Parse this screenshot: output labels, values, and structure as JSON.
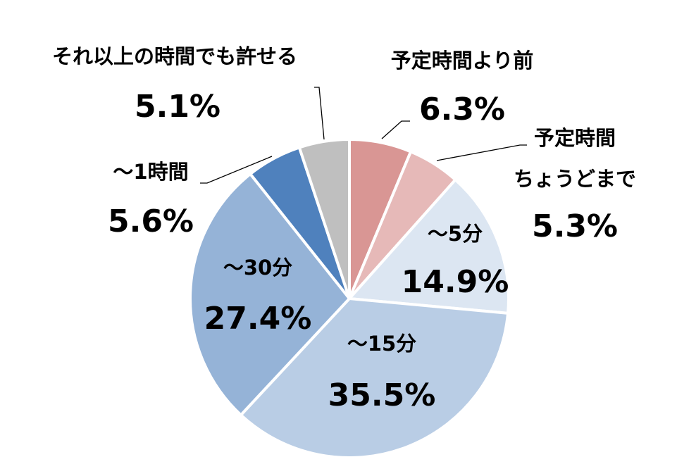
{
  "chart_data": {
    "type": "pie",
    "start": "12 o'clock",
    "direction": "clockwise",
    "slices": [
      {
        "label": "予定時間より前",
        "value": 6.3,
        "display": "6.3%",
        "color": "#d99694",
        "label_placement": "outside"
      },
      {
        "label": "予定時間ちょうどまで",
        "label_lines": [
          "予定時間",
          "ちょうどまで"
        ],
        "value": 5.3,
        "display": "5.3%",
        "color": "#e6b9b8",
        "label_placement": "outside"
      },
      {
        "label": "～5分",
        "value": 14.9,
        "display": "14.9%",
        "color": "#dce6f2",
        "label_placement": "inside"
      },
      {
        "label": "～15分",
        "value": 35.5,
        "display": "35.5%",
        "color": "#b9cde5",
        "label_placement": "inside"
      },
      {
        "label": "～30分",
        "value": 27.4,
        "display": "27.4%",
        "color": "#95b3d7",
        "label_placement": "inside"
      },
      {
        "label": "～1時間",
        "value": 5.6,
        "display": "5.6%",
        "color": "#4f81bd",
        "label_placement": "outside"
      },
      {
        "label": "それ以上の時間でも許せる",
        "value": 5.1,
        "display": "5.1%",
        "color": "#bfbfbf",
        "label_placement": "outside"
      }
    ]
  }
}
